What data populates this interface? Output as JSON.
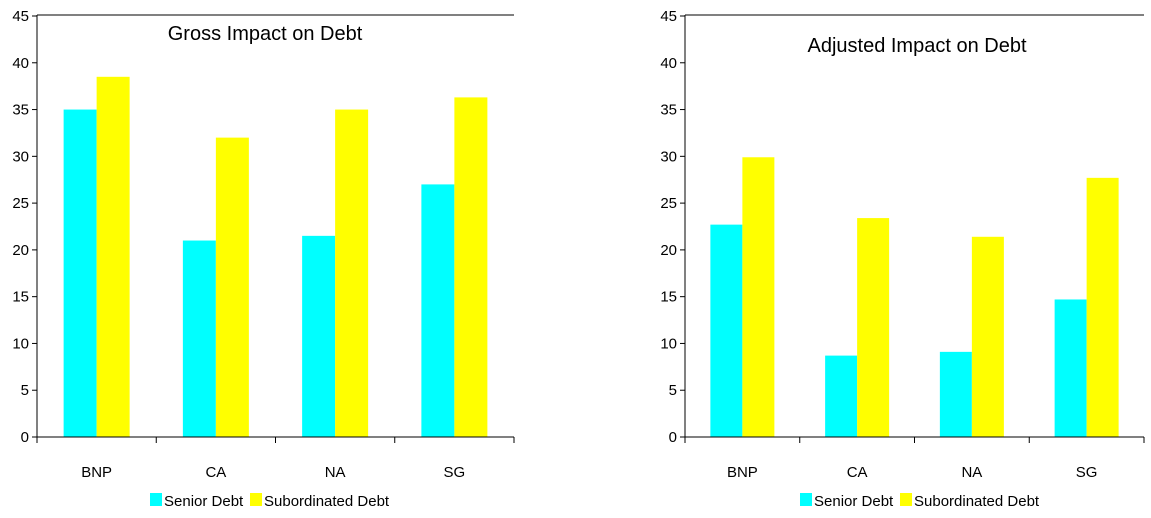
{
  "colors": {
    "senior": "#00FFFF",
    "subordinated": "#FFFF00",
    "axis": "#000000",
    "background": "#FFFFFF"
  },
  "chart_data": [
    {
      "type": "bar",
      "title": "Gross Impact on Debt",
      "categories": [
        "BNP",
        "CA",
        "NA",
        "SG"
      ],
      "series": [
        {
          "name": "Senior Debt",
          "values": [
            35,
            21,
            21.5,
            27
          ]
        },
        {
          "name": "Subordinated Debt",
          "values": [
            38.5,
            32,
            35,
            36.3
          ]
        }
      ],
      "ylim": [
        0,
        45
      ],
      "yticks": [
        "0",
        "5",
        "10",
        "15",
        "20",
        "25",
        "30",
        "35",
        "40",
        "45"
      ],
      "grid": false,
      "legend": "bottom",
      "xlabel": "",
      "ylabel": ""
    },
    {
      "type": "bar",
      "title": "Adjusted Impact on Debt",
      "categories": [
        "BNP",
        "CA",
        "NA",
        "SG"
      ],
      "series": [
        {
          "name": "Senior Debt",
          "values": [
            22.7,
            8.7,
            9.1,
            14.7
          ]
        },
        {
          "name": "Subordinated Debt",
          "values": [
            29.9,
            23.4,
            21.4,
            27.7
          ]
        }
      ],
      "ylim": [
        0,
        45
      ],
      "yticks": [
        "0",
        "5",
        "10",
        "15",
        "20",
        "25",
        "30",
        "35",
        "40",
        "45"
      ],
      "grid": false,
      "legend": "bottom",
      "xlabel": "",
      "ylabel": ""
    }
  ]
}
